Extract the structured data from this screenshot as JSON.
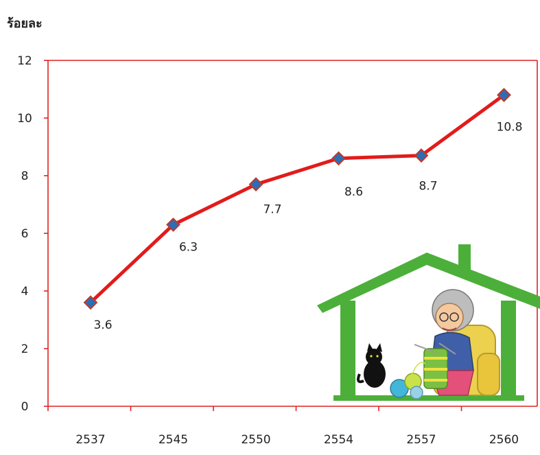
{
  "chart_data": {
    "type": "line",
    "title": "",
    "ylabel": "ร้อยละ",
    "xlabel": "",
    "categories": [
      "2537",
      "2545",
      "2550",
      "2554",
      "2557",
      "2560"
    ],
    "series": [
      {
        "values": [
          3.6,
          6.3,
          7.7,
          8.6,
          8.7,
          10.8
        ],
        "data_labels": [
          "3.6",
          "6.3",
          "7.7",
          "8.6",
          "8.7",
          "10.8"
        ]
      }
    ],
    "ylim": [
      0,
      12
    ],
    "yticks": [
      "0",
      "2",
      "4",
      "6",
      "8",
      "10",
      "12"
    ],
    "grid": false,
    "legend": "none",
    "colors": {
      "axis": "#e02020",
      "line": "#e21b1b",
      "marker_fill": "#2e6db4",
      "marker_stroke": "#c0392b",
      "house_green": "#4caf3a"
    }
  },
  "illustration": {
    "icons": [
      "house-icon",
      "grandmother-knitting-icon",
      "cat-icon",
      "yarn-ball-icon"
    ]
  }
}
